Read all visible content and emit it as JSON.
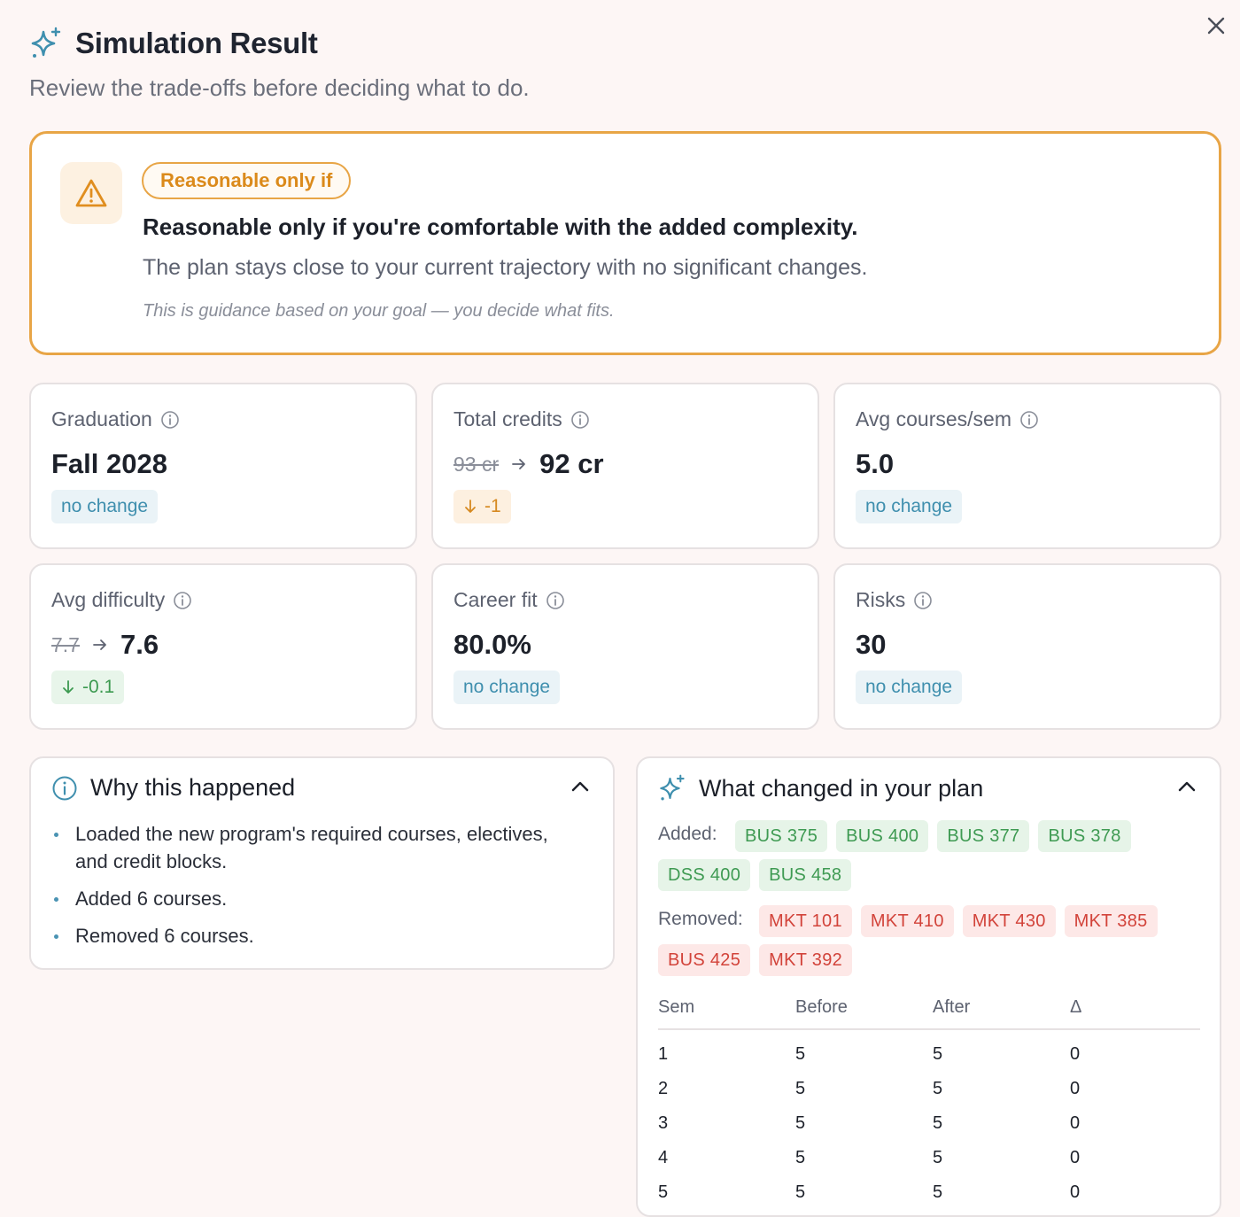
{
  "header": {
    "title": "Simulation Result",
    "subtitle": "Review the trade-offs before deciding what to do.",
    "icon": "sparkle-icon"
  },
  "recommendation": {
    "badge": "Reasonable only if",
    "headline": "Reasonable only if you're comfortable with the added complexity.",
    "body": "The plan stays close to your current trajectory with no significant changes.",
    "note": "This is guidance based on your goal — you decide what fits.",
    "icon": "warning-icon",
    "accent_color": "#e8a546"
  },
  "metrics": [
    {
      "label": "Graduation",
      "value": "Fall 2028",
      "delta": "no change"
    },
    {
      "label": "Total credits",
      "old": "93 cr",
      "value": "92 cr",
      "delta": "-1"
    },
    {
      "label": "Avg courses/sem",
      "value": "5.0",
      "delta": "no change"
    },
    {
      "label": "Avg difficulty",
      "old": "7.7",
      "value": "7.6",
      "delta": "-0.1"
    },
    {
      "label": "Career fit",
      "value": "80.0%",
      "delta": "no change"
    },
    {
      "label": "Risks",
      "value": "30",
      "delta": "no change"
    }
  ],
  "why": {
    "title": "Why this happened",
    "items": [
      "Loaded the new program's required courses, electives, and credit blocks.",
      "Added 6 courses.",
      "Removed 6 courses."
    ]
  },
  "changes": {
    "title": "What changed in your plan",
    "added_label": "Added:",
    "removed_label": "Removed:",
    "added": [
      "BUS 375",
      "BUS 400",
      "BUS 377",
      "BUS 378",
      "DSS 400",
      "BUS 458"
    ],
    "removed": [
      "MKT 101",
      "MKT 410",
      "MKT 430",
      "MKT 385",
      "BUS 425",
      "MKT 392"
    ],
    "table": {
      "headers": [
        "Sem",
        "Before",
        "After",
        "Δ"
      ],
      "rows": [
        [
          "1",
          "5",
          "5",
          "0"
        ],
        [
          "2",
          "5",
          "5",
          "0"
        ],
        [
          "3",
          "5",
          "5",
          "0"
        ],
        [
          "4",
          "5",
          "5",
          "0"
        ],
        [
          "5",
          "5",
          "5",
          "0"
        ]
      ]
    }
  }
}
